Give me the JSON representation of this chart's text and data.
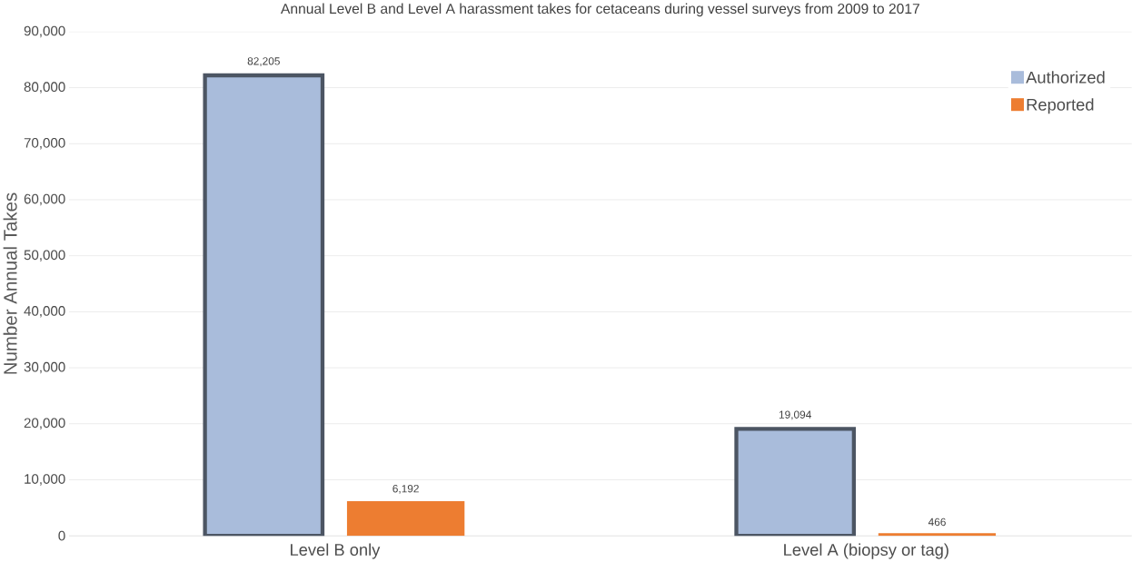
{
  "chart_data": {
    "type": "bar",
    "title": "Annual Level B and Level A harassment takes for cetaceans during vessel surveys from 2009 to 2017",
    "ylabel": "Number Annual Takes",
    "categories": [
      "Level B only",
      "Level A (biopsy or tag)"
    ],
    "series": [
      {
        "name": "Authorized",
        "color": "#a9bcdb",
        "values": [
          82205,
          19094
        ],
        "value_labels": [
          "82,205",
          "19,094"
        ]
      },
      {
        "name": "Reported",
        "color": "#ed7d31",
        "values": [
          6192,
          466
        ],
        "value_labels": [
          "6,192",
          "466"
        ]
      }
    ],
    "ylim": [
      0,
      90000
    ],
    "yticks": [
      0,
      {
        "value": 10000,
        "label": "10,000"
      },
      {
        "value": 20000,
        "label": "20,000"
      },
      {
        "value": 30000,
        "label": "30,000"
      },
      {
        "value": 40000,
        "label": "40,000"
      },
      {
        "value": 50000,
        "label": "50,000"
      },
      {
        "value": 60000,
        "label": "60,000"
      },
      {
        "value": 70000,
        "label": "70,000"
      },
      {
        "value": 80000,
        "label": "80,000"
      },
      {
        "value": 90000,
        "label": "90,000"
      }
    ],
    "grid": "y",
    "legend": "top right"
  }
}
